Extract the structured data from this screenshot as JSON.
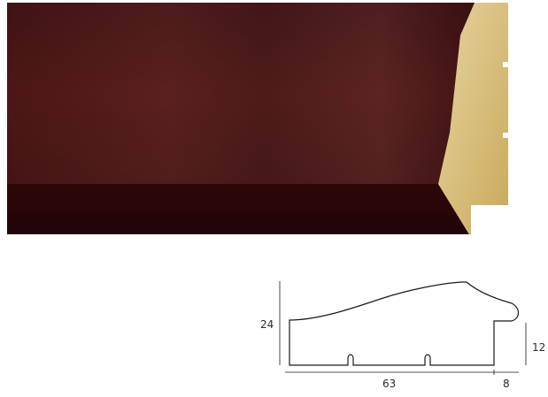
{
  "product": {
    "moulding_photo": {
      "finish_color": "#4a1414",
      "shadow_color": "#2a0608",
      "wood_color": "#d9c48f"
    },
    "profile_drawing": {
      "stroke_color": "#1a1a1a",
      "dimensions": {
        "height": "24",
        "rebate_height": "12",
        "width": "63",
        "rebate_width": "8"
      }
    }
  }
}
